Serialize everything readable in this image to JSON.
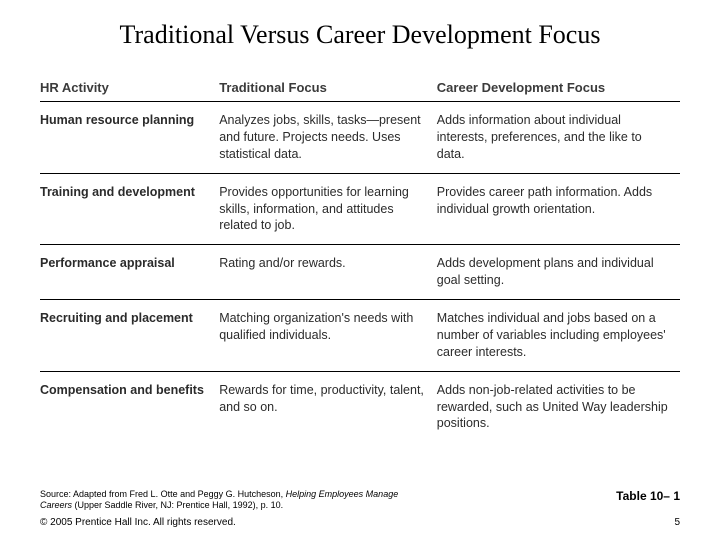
{
  "title": "Traditional Versus Career Development Focus",
  "columns": [
    "HR Activity",
    "Traditional Focus",
    "Career Development Focus"
  ],
  "rows": [
    {
      "activity": "Human resource planning",
      "traditional": "Analyzes jobs, skills, tasks—present and future. Projects needs. Uses statistical data.",
      "development": "Adds information about individual interests, preferences, and the like to data."
    },
    {
      "activity": "Training and development",
      "traditional": "Provides opportunities for learning skills, information, and attitudes related to job.",
      "development": "Provides career path information. Adds individual growth orientation."
    },
    {
      "activity": "Performance appraisal",
      "traditional": "Rating and/or rewards.",
      "development": "Adds development plans and individual goal setting."
    },
    {
      "activity": "Recruiting and placement",
      "traditional": "Matching organization's needs with qualified individuals.",
      "development": "Matches individual and jobs based on a number of variables including employees' career interests."
    },
    {
      "activity": "Compensation and benefits",
      "traditional": "Rewards for time, productivity, talent, and so on.",
      "development": "Adds non-job-related activities to be rewarded, such as United Way leadership positions."
    }
  ],
  "source_prefix": "Source: Adapted from Fred L. Otte and Peggy G. Hutcheson, ",
  "source_italic": "Helping Employees Manage Careers",
  "source_suffix": " (Upper Saddle River, NJ: Prentice Hall, 1992), p. 10.",
  "copyright": "© 2005 Prentice Hall Inc. All rights reserved.",
  "table_label": "Table 10– 1",
  "page_number": "5"
}
